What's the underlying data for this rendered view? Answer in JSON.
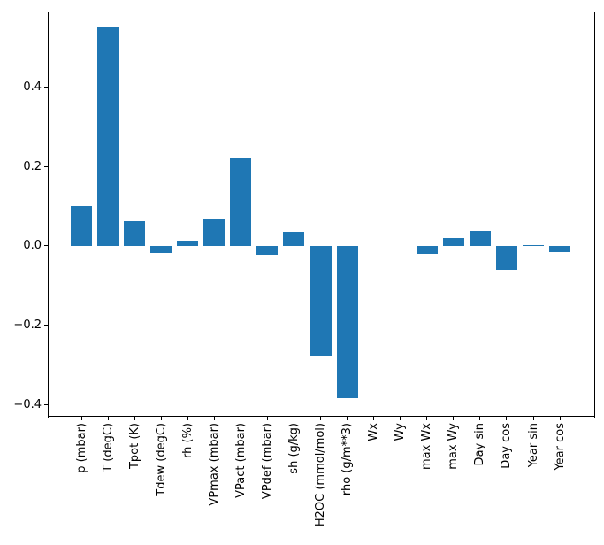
{
  "chart_data": {
    "type": "bar",
    "title": "",
    "xlabel": "",
    "ylabel": "",
    "categories": [
      "p (mbar)",
      "T (degC)",
      "Tpot (K)",
      "Tdew (degC)",
      "rh (%)",
      "VPmax (mbar)",
      "VPact (mbar)",
      "VPdef (mbar)",
      "sh (g/kg)",
      "H2OC (mmol/mol)",
      "rho (g/m**3)",
      "Wx",
      "Wy",
      "max Wx",
      "max Wy",
      "Day sin",
      "Day cos",
      "Year sin",
      "Year cos"
    ],
    "values": [
      0.1,
      0.55,
      0.063,
      -0.017,
      0.013,
      0.069,
      0.22,
      -0.022,
      0.035,
      -0.275,
      -0.382,
      0.0,
      0.0,
      -0.02,
      0.019,
      0.038,
      -0.06,
      0.003,
      -0.016
    ],
    "yticks": [
      {
        "value": 0.4,
        "label": "0.4"
      },
      {
        "value": 0.2,
        "label": "0.2"
      },
      {
        "value": 0.0,
        "label": "0.0"
      },
      {
        "value": -0.2,
        "label": "−0.2"
      },
      {
        "value": -0.4,
        "label": "−0.4"
      }
    ],
    "ylim": [
      -0.429,
      0.589
    ],
    "x_tick_rotation": 90,
    "grid": false,
    "legend": null,
    "bar_color": "#1f77b4",
    "axis_color": "#000000",
    "background_color": "#ffffff"
  }
}
